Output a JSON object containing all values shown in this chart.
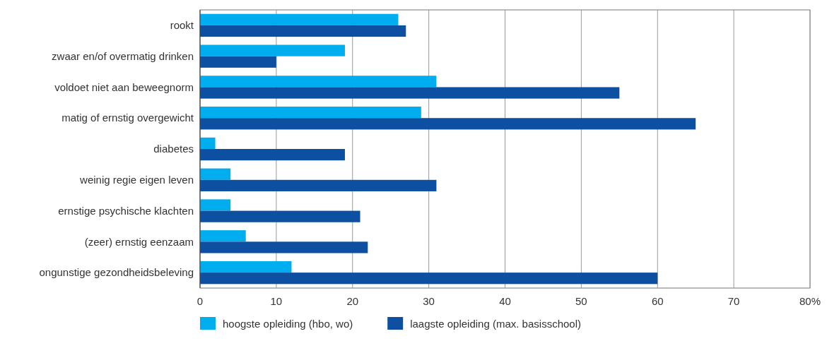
{
  "chart_data": {
    "type": "bar",
    "orientation": "horizontal",
    "categories": [
      "rookt",
      "zwaar en/of overmatig drinken",
      "voldoet niet aan beweegnorm",
      "matig of ernstig overgewicht",
      "diabetes",
      "weinig regie eigen leven",
      "ernstige psychische klachten",
      "(zeer) ernstig eenzaam",
      "ongunstige gezondheidsbeleving"
    ],
    "series": [
      {
        "name": "hoogste opleiding (hbo, wo)",
        "color": "#00aeef",
        "values": [
          26,
          19,
          31,
          29,
          2,
          4,
          4,
          6,
          12
        ]
      },
      {
        "name": "laagste opleiding (max. basisschool)",
        "color": "#0d4fa0",
        "values": [
          27,
          10,
          55,
          65,
          19,
          31,
          21,
          22,
          60
        ]
      }
    ],
    "xlim": [
      0,
      80
    ],
    "xticks": [
      0,
      10,
      20,
      30,
      40,
      50,
      60,
      70,
      {
        "value": 80,
        "label": "80%"
      }
    ],
    "grid": "x",
    "legend": "bottom"
  }
}
